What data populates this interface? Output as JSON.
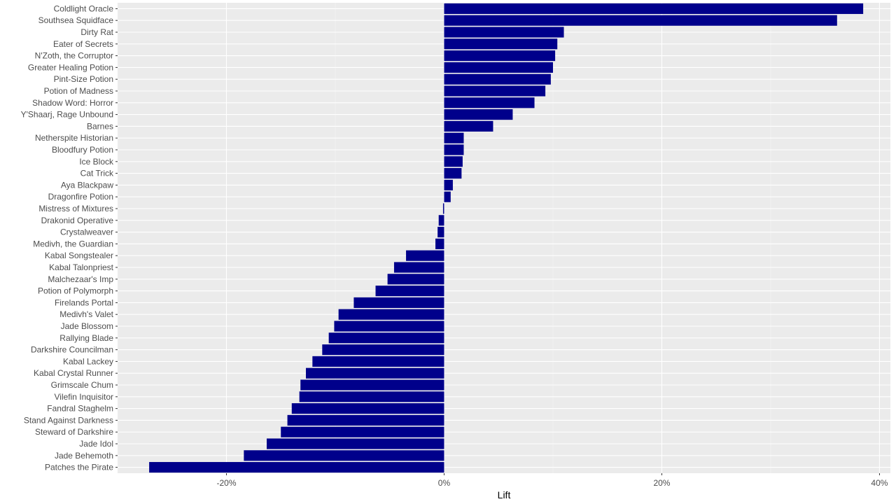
{
  "colors": {
    "panel": "#ebebeb",
    "grid_major": "#ffffff",
    "grid_minor": "#f5f5f5",
    "bar": "#00008b",
    "tick": "#333333"
  },
  "chart_data": {
    "type": "bar",
    "orientation": "horizontal",
    "xlabel": "Lift",
    "ylabel": "",
    "title": "",
    "xlim": [
      -0.3,
      0.41
    ],
    "x_ticks": [
      {
        "value": -0.2,
        "label": "-20%"
      },
      {
        "value": 0.0,
        "label": "0%"
      },
      {
        "value": 0.2,
        "label": "20%"
      },
      {
        "value": 0.4,
        "label": "40%"
      }
    ],
    "x_minor_ticks": [
      -0.3,
      -0.1,
      0.1,
      0.3
    ],
    "grid": true,
    "categories": [
      "Coldlight Oracle",
      "Southsea Squidface",
      "Dirty Rat",
      "Eater of Secrets",
      "N'Zoth, the Corruptor",
      "Greater Healing Potion",
      "Pint-Size Potion",
      "Potion of Madness",
      "Shadow Word: Horror",
      "Y'Shaarj, Rage Unbound",
      "Barnes",
      "Netherspite Historian",
      "Bloodfury Potion",
      "Ice Block",
      "Cat Trick",
      "Aya Blackpaw",
      "Dragonfire Potion",
      "Mistress of Mixtures",
      "Drakonid Operative",
      "Crystalweaver",
      "Medivh, the Guardian",
      "Kabal Songstealer",
      "Kabal Talonpriest",
      "Malchezaar's Imp",
      "Potion of Polymorph",
      "Firelands Portal",
      "Medivh's Valet",
      "Jade Blossom",
      "Rallying Blade",
      "Darkshire Councilman",
      "Kabal Lackey",
      "Kabal Crystal Runner",
      "Grimscale Chum",
      "Vilefin Inquisitor",
      "Fandral Staghelm",
      "Stand Against Darkness",
      "Steward of Darkshire",
      "Jade Idol",
      "Jade Behemoth",
      "Patches the Pirate"
    ],
    "values": [
      0.385,
      0.361,
      0.11,
      0.104,
      0.102,
      0.1,
      0.098,
      0.093,
      0.083,
      0.063,
      0.045,
      0.018,
      0.018,
      0.017,
      0.016,
      0.008,
      0.006,
      -0.001,
      -0.005,
      -0.006,
      -0.008,
      -0.035,
      -0.046,
      -0.052,
      -0.063,
      -0.083,
      -0.097,
      -0.101,
      -0.106,
      -0.112,
      -0.121,
      -0.127,
      -0.132,
      -0.133,
      -0.14,
      -0.144,
      -0.15,
      -0.163,
      -0.184,
      -0.271
    ]
  }
}
